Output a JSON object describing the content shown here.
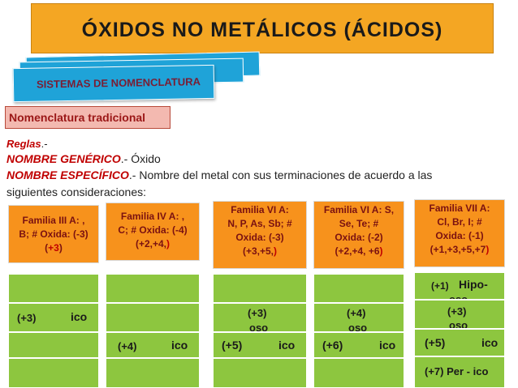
{
  "title": "ÓXIDOS NO METÁLICOS (ÁCIDOS)",
  "systems_label": "SISTEMAS DE NOMENCLATURA",
  "traditional_label": "Nomenclatura tradicional",
  "rules": {
    "label": "Reglas",
    "label_suffix": ".-",
    "generic_term": "NOMBRE GENÉRICO",
    "generic_text": ".- Óxido",
    "specific_term": "NOMBRE ESPECÍFICO",
    "specific_text": ".- Nombre del metal con sus terminaciones de acuerdo a las",
    "specific_text_2": "siguientes consideraciones:"
  },
  "families": [
    {
      "line1": "Familia III A: ,",
      "line2": "B; # Oxida: (-3)",
      "line3": "(",
      "line3_red": "+3",
      "line3_end": ")"
    },
    {
      "line1": "Familia IV A: ,",
      "line2": "C; # Oxida: (-4)",
      "line3": "(+2,+4,",
      "line3_red": ")",
      "line3_end": ""
    },
    {
      "line1": "Familia VI A:",
      "line2": "N, P, As, Sb; #",
      "line3": "Oxida: (-3)",
      "line4": "(+3,+5,",
      "line4_red": ")"
    },
    {
      "line1": "Familia VI A: S,",
      "line2": "Se, Te; #",
      "line3": "Oxida: (-2)",
      "line4": "(+2,+4, +6",
      "line4_red": ")"
    },
    {
      "line1": "Familia VII A:",
      "line2": "Cl, Br, I; #",
      "line3": "Oxida: (-1)",
      "line4": "(+1,+3,+5,+7",
      "line4_red": ")"
    }
  ],
  "cells": {
    "c1": {
      "ox": "(+3)",
      "suffix": "ico"
    },
    "c2": {
      "ox": "(+4)",
      "suffix": "ico"
    },
    "c3_oso_ox": "(+3)",
    "c3_oso": "oso",
    "c3_ico_ox": "(+5)",
    "c3_ico": "ico",
    "c4_oso_ox": "(+4)",
    "c4_oso": "oso",
    "c4_ico_ox": "(+6)",
    "c4_ico": "ico",
    "c5_hipo_ox": "(+1)",
    "c5_hipo": "Hipo-",
    "c5_hipo_oso": "oso",
    "c5_oso_ox": "(+3)",
    "c5_oso": "oso",
    "c5_ico_ox": "(+5)",
    "c5_ico": "ico",
    "c5_per": "(+7) Per - ico"
  },
  "colors": {
    "title_bg": "#f4a623",
    "stack_blue": "#1fa3d8",
    "header_orange": "#f7921c",
    "cell_green": "#8dc63f",
    "accent_red": "#c00000"
  }
}
